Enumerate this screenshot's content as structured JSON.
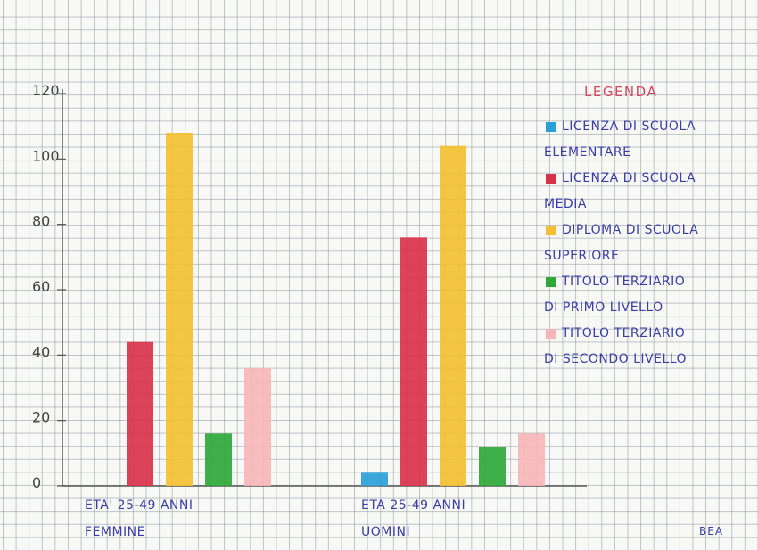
{
  "chart_data": {
    "type": "bar",
    "title": "",
    "xlabel": "",
    "ylabel": "",
    "ylim": [
      0,
      120
    ],
    "yticks": [
      "0",
      "20",
      "40",
      "60",
      "80",
      "100",
      "120"
    ],
    "grid": true,
    "legend_position": "right",
    "legend_title": "LEGENDA",
    "categories": [
      {
        "line1": "ETA' 25-49 ANNI",
        "line2": "FEMMINE"
      },
      {
        "line1": "ETA 25-49 ANNI",
        "line2": "UOMINI"
      }
    ],
    "series": [
      {
        "name": "LICENZA DI SCUOLA ELEMENTARE",
        "legend_lines": [
          "LICENZA DI SCUOLA",
          "ELEMENTARE"
        ],
        "color": "#2ba0d8",
        "values": [
          0,
          4
        ]
      },
      {
        "name": "LICENZA DI SCUOLA MEDIA",
        "legend_lines": [
          "LICENZA DI SCUOLA",
          "MEDIA"
        ],
        "color": "#d9334b",
        "values": [
          44,
          76
        ]
      },
      {
        "name": "DIPLOMA DI SCUOLA SUPERIORE",
        "legend_lines": [
          "DIPLOMA DI SCUOLA",
          "SUPERIORE"
        ],
        "color": "#f2c030",
        "values": [
          108,
          104
        ]
      },
      {
        "name": "TITOLO TERZIARIO DI PRIMO LIVELLO",
        "legend_lines": [
          "TITOLO TERZIARIO",
          "DI PRIMO LIVELLO"
        ],
        "color": "#2fa83a",
        "values": [
          16,
          12
        ]
      },
      {
        "name": "TITOLO TERZIARIO DI SECONDO LIVELLO",
        "legend_lines": [
          "TITOLO TERZIARIO",
          "DI SECONDO LIVELLO"
        ],
        "color": "#f6b6b8",
        "values": [
          36,
          16
        ]
      }
    ]
  },
  "author": "BEA"
}
